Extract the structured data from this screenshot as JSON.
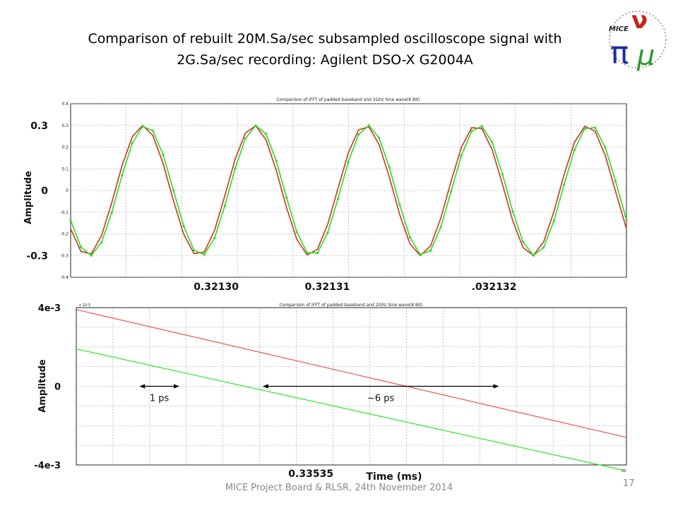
{
  "slide": {
    "title_line1": "Comparison of  rebuilt 20M.Sa/sec subsampled oscilloscope signal with",
    "title_line2": "2G.Sa/sec recording: Agilent DSO-X G2004A",
    "footer": "MICE Project Board & RLSR, 24th November 2014",
    "page_number": "17",
    "logo_text": "MICE"
  },
  "chart_data": [
    {
      "type": "line",
      "title": "Comparison of IFFT of padded baseband and 2Ghz Sine wave(8 Bit)",
      "ylabel": "Amplitude",
      "ylim": [
        -0.4,
        0.4
      ],
      "yticks": [
        "0.4",
        "0.3",
        "0.2",
        "0.1",
        "0",
        "-0.1",
        "-0.2",
        "-0.3",
        "-0.4"
      ],
      "big_yticks": [
        {
          "label": "0.3",
          "value": 0.3
        },
        {
          "label": "0",
          "value": 0
        },
        {
          "label": "-0.3",
          "value": -0.3
        }
      ],
      "x_range": [
        0,
        1
      ],
      "x_tick_labels": [
        "0.32130",
        "0.32131",
        ".032132"
      ],
      "x_tick_positions": [
        0.3,
        0.5,
        0.8
      ],
      "grid": true,
      "series": [
        {
          "color": "#d62d20",
          "period_fraction": 0.2,
          "phase": -0.12,
          "amplitude": 0.3,
          "markers": false
        },
        {
          "color": "#22dd22",
          "period_fraction": 0.2,
          "phase": -0.115,
          "amplitude": 0.3,
          "markers": true
        }
      ],
      "sample_x": [
        0,
        0.0185,
        0.037,
        0.0555,
        0.074,
        0.0925,
        0.111,
        0.1295,
        0.148,
        0.1665,
        0.185,
        0.2035,
        0.222,
        0.2405,
        0.259,
        0.2775,
        0.296,
        0.3145,
        0.333,
        0.3515,
        0.37,
        0.3885,
        0.407,
        0.4255,
        0.444,
        0.4625,
        0.481,
        0.4995,
        0.518,
        0.5365,
        0.555,
        0.5735,
        0.592,
        0.6105,
        0.629,
        0.6475,
        0.666,
        0.6845,
        0.703,
        0.7215,
        0.74,
        0.7585,
        0.777,
        0.7955,
        0.814,
        0.8325,
        0.851,
        0.8695,
        0.888,
        0.9065,
        0.925,
        0.9435,
        0.962,
        0.9805,
        1.0
      ]
    },
    {
      "type": "line",
      "title": "Comparison of IFFT of padded baseband and 2Ghz Sine wave(8 Bit)",
      "ylabel": "Amplitude",
      "xlabel": "Time (ms)",
      "y_scale_note": "x 10-3",
      "ylim": [
        -4,
        4
      ],
      "big_yticks": [
        {
          "label": "4e-3",
          "value": 4
        },
        {
          "label": "0",
          "value": 0
        },
        {
          "label": "-4e-3",
          "value": -4
        }
      ],
      "x_range": [
        0,
        1
      ],
      "x_tick_labels": [
        "0.33535"
      ],
      "x_tick_positions": [
        0.42
      ],
      "x_corner_label": "36",
      "grid": true,
      "series": [
        {
          "color": "#e8574f",
          "x": [
            0,
            1
          ],
          "y": [
            3.9,
            -2.6
          ]
        },
        {
          "color": "#2ee62e",
          "x": [
            0,
            1
          ],
          "y": [
            1.9,
            -4.3
          ]
        }
      ],
      "annotations": [
        {
          "text": "1 ps",
          "x_from": 0.116,
          "x_to": 0.186,
          "y": 0
        },
        {
          "text": "~6 ps",
          "x_from": 0.34,
          "x_to": 0.767,
          "y": 0
        }
      ]
    }
  ]
}
